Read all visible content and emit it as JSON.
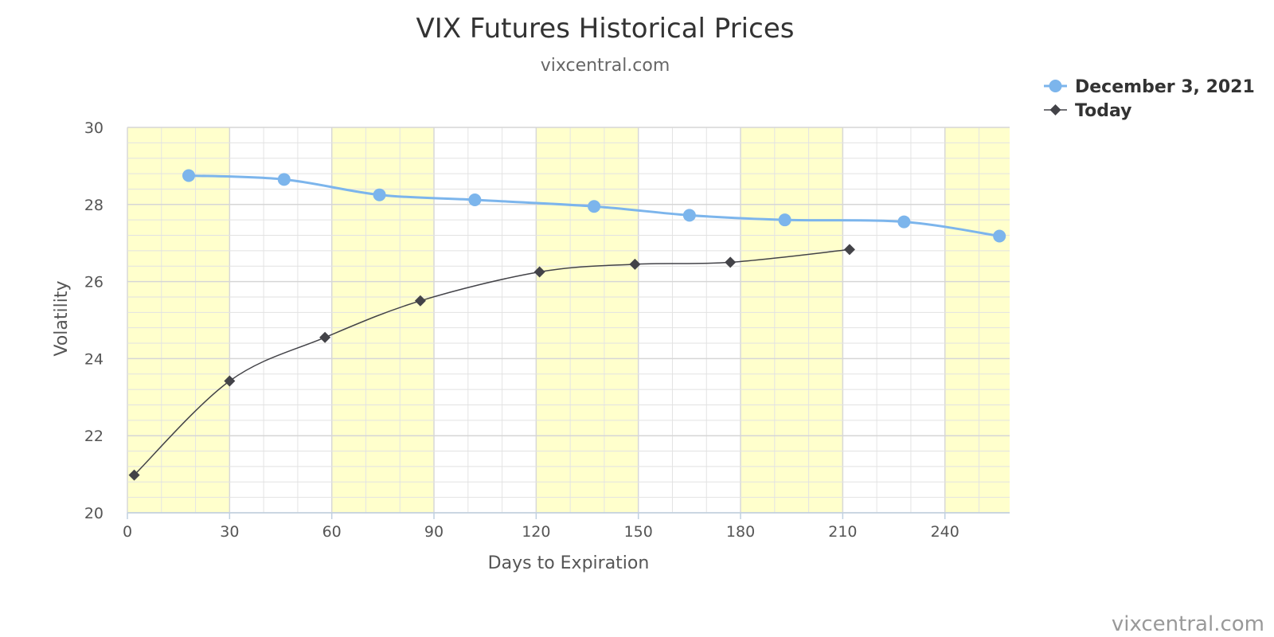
{
  "chart_data": {
    "type": "line",
    "title": "VIX Futures Historical Prices",
    "subtitle": "vixcentral.com",
    "xlabel": "Days to Expiration",
    "ylabel": "Volatility",
    "xlim": [
      0,
      259
    ],
    "ylim": [
      20,
      30
    ],
    "x_ticks": [
      0,
      30,
      60,
      90,
      120,
      150,
      180,
      210,
      240
    ],
    "y_ticks": [
      20,
      22,
      24,
      26,
      28,
      30
    ],
    "grid": true,
    "band_color": "#ffffcc",
    "legend_position": "top-right",
    "series": [
      {
        "name": "December 3, 2021",
        "color": "#7cb5ec",
        "marker": "circle",
        "x": [
          18,
          46,
          74,
          102,
          137,
          165,
          193,
          228,
          256
        ],
        "y": [
          28.75,
          28.65,
          28.25,
          28.12,
          27.95,
          27.72,
          27.6,
          27.55,
          27.18
        ]
      },
      {
        "name": "Today",
        "color": "#434348",
        "marker": "diamond",
        "x": [
          2,
          30,
          58,
          86,
          121,
          149,
          177,
          212
        ],
        "y": [
          20.98,
          23.42,
          24.55,
          25.5,
          26.25,
          26.45,
          26.5,
          26.83
        ]
      }
    ]
  },
  "credit": "vixcentral.com"
}
